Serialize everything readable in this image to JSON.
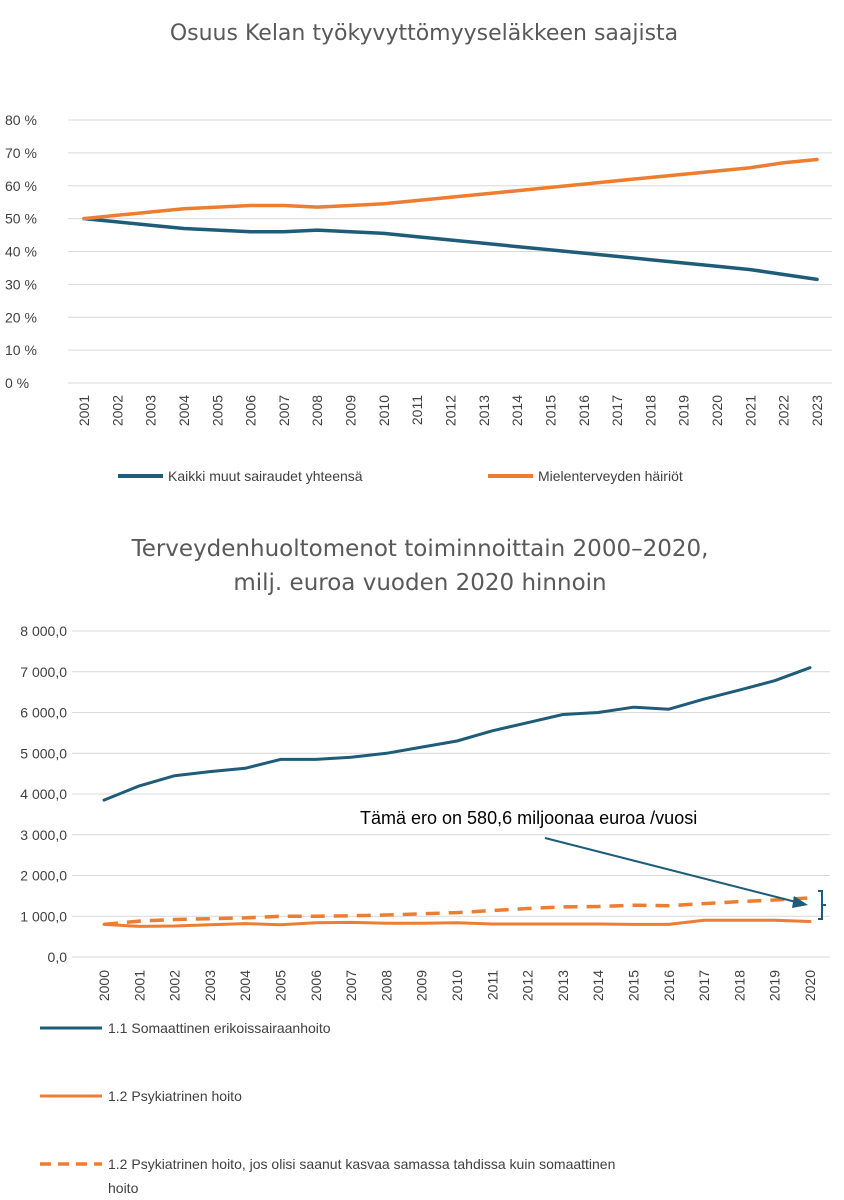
{
  "chart_data": [
    {
      "type": "line",
      "title": "Osuus Kelan työkyvyttömyyseläkkeen saajista",
      "x": [
        "2001",
        "2002",
        "2003",
        "2004",
        "2005",
        "2006",
        "2007",
        "2008",
        "2009",
        "2010",
        "2011",
        "2012",
        "2013",
        "2014",
        "2015",
        "2016",
        "2017",
        "2018",
        "2019",
        "2020",
        "2021",
        "2022",
        "2023"
      ],
      "y_ticks": [
        "0 %",
        "10 %",
        "20 %",
        "30 %",
        "40 %",
        "50 %",
        "60 %",
        "70 %",
        "80 %"
      ],
      "ylim": [
        0,
        80
      ],
      "grid": true,
      "legend_position": "bottom",
      "series": [
        {
          "name": "Kaikki muut sairaudet yhteensä",
          "color": "#1f5c7a",
          "values": [
            50,
            49,
            48,
            47,
            46.5,
            46,
            46,
            46.5,
            46,
            45.5,
            44.5,
            43.5,
            42.5,
            41.5,
            40.5,
            39.5,
            38.5,
            37.5,
            36.5,
            35.5,
            34.5,
            33,
            31.5
          ]
        },
        {
          "name": "Mielenterveyden häiriöt",
          "color": "#ed7d31",
          "values": [
            50,
            51,
            52,
            53,
            53.5,
            54,
            54,
            53.5,
            54,
            54.5,
            55.5,
            56.5,
            57.5,
            58.5,
            59.5,
            60.5,
            61.5,
            62.5,
            63.5,
            64.5,
            65.5,
            67,
            68
          ]
        }
      ]
    },
    {
      "type": "line",
      "title": "Terveydenhuoltomenot toiminnoittain 2000–2020, milj. euroa vuoden 2020 hinnoin",
      "title_lines": [
        "Terveydenhuoltomenot toiminnoittain 2000–2020,",
        "milj. euroa vuoden 2020 hinnoin"
      ],
      "x": [
        "2000",
        "2001",
        "2002",
        "2003",
        "2004",
        "2005",
        "2006",
        "2007",
        "2008",
        "2009",
        "2010",
        "2011",
        "2012",
        "2013",
        "2014",
        "2015",
        "2016",
        "2017",
        "2018",
        "2019",
        "2020"
      ],
      "y_ticks": [
        "0,0",
        "1 000,0",
        "2 000,0",
        "3 000,0",
        "4 000,0",
        "5 000,0",
        "6 000,0",
        "7 000,0",
        "8 000,0"
      ],
      "ylim": [
        0,
        8000
      ],
      "grid": true,
      "legend_position": "bottom",
      "annotation": "Tämä ero on 580,6 miljoonaa euroa /vuosi",
      "series": [
        {
          "name": "1.1 Somaattinen erikoissairaanhoito",
          "color": "#1f5c7a",
          "style": "solid",
          "values": [
            3850,
            4200,
            4450,
            4550,
            4630,
            4850,
            4850,
            4900,
            5000,
            5150,
            5300,
            5550,
            5750,
            5950,
            6000,
            6130,
            6080,
            6330,
            6550,
            6780,
            7100
          ]
        },
        {
          "name": "1.2 Psykiatrinen hoito",
          "color": "#ed7d31",
          "style": "solid",
          "values": [
            800,
            750,
            760,
            790,
            820,
            790,
            840,
            850,
            830,
            830,
            840,
            810,
            810,
            810,
            810,
            800,
            800,
            900,
            900,
            900,
            870
          ]
        },
        {
          "name": "1.2 Psykiatrinen hoito, jos olisi saanut kasvaa samassa tahdissa kuin somaattinen hoito",
          "color": "#ed7d31",
          "style": "dashed",
          "label_lines": [
            "1.2 Psykiatrinen hoito, jos olisi saanut kasvaa samassa tahdissa kuin somaattinen",
            "hoito"
          ],
          "values": [
            800,
            880,
            920,
            940,
            960,
            1000,
            1000,
            1010,
            1030,
            1060,
            1090,
            1140,
            1190,
            1230,
            1240,
            1270,
            1260,
            1310,
            1360,
            1400,
            1450
          ]
        }
      ]
    }
  ]
}
